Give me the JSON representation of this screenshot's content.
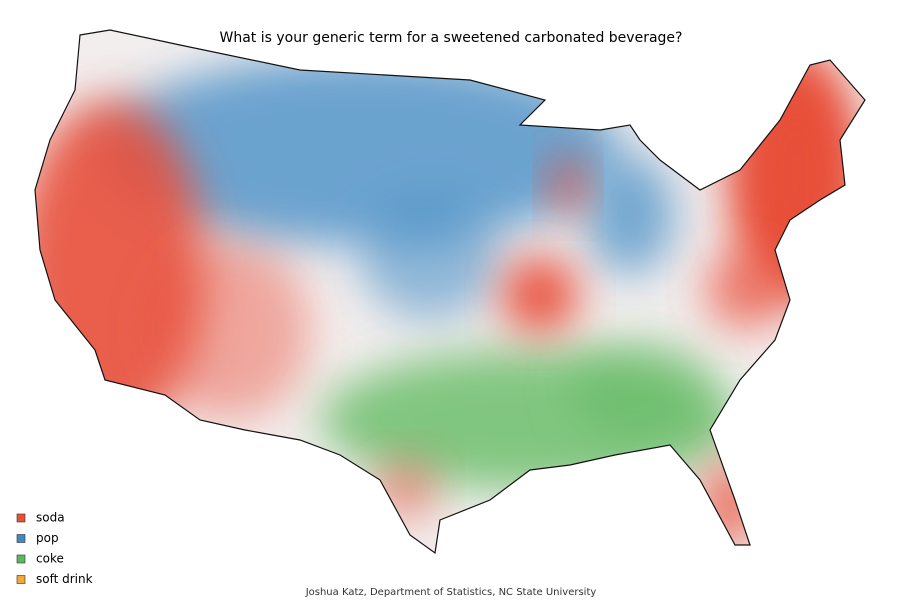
{
  "title": "What is your generic term for a sweetened carbonated beverage?",
  "legend": [
    {
      "name": "soda",
      "color": "#e8503a"
    },
    {
      "name": "pop",
      "color": "#3f8ac4"
    },
    {
      "name": "coke",
      "color": "#5cb85c"
    },
    {
      "name": "soft drink",
      "color": "#f2a93b"
    }
  ],
  "credit": "Joshua Katz, Department of Statistics, NC State University"
}
